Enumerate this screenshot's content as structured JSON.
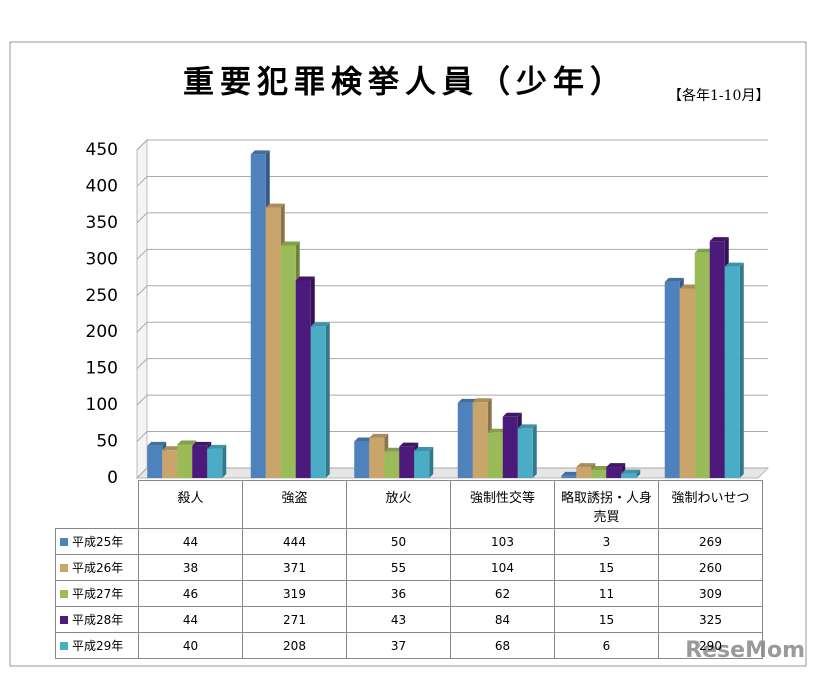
{
  "chart_data": {
    "type": "bar",
    "title": "重要犯罪検挙人員（少年）",
    "subtitle": "【各年1-10月】",
    "watermark": "ReseMom",
    "categories": [
      "殺人",
      "強盗",
      "放火",
      "強制性交等",
      "略取誘拐・人身売買",
      "強制わいせつ"
    ],
    "series": [
      {
        "name": "平成25年",
        "color": "#4f81bd",
        "values": [
          44,
          444,
          50,
          103,
          3,
          269
        ]
      },
      {
        "name": "平成26年",
        "color": "#c9a56b",
        "values": [
          38,
          371,
          55,
          104,
          15,
          260
        ]
      },
      {
        "name": "平成27年",
        "color": "#9bbb59",
        "values": [
          46,
          319,
          36,
          62,
          11,
          309
        ]
      },
      {
        "name": "平成28年",
        "color": "#4b1a7a",
        "values": [
          44,
          271,
          43,
          84,
          15,
          325
        ]
      },
      {
        "name": "平成29年",
        "color": "#4bacc6",
        "values": [
          40,
          208,
          37,
          68,
          6,
          290
        ]
      }
    ],
    "ylim": [
      0,
      450
    ],
    "yticks": [
      0,
      50,
      100,
      150,
      200,
      250,
      300,
      350,
      400,
      450
    ],
    "grid": true
  }
}
